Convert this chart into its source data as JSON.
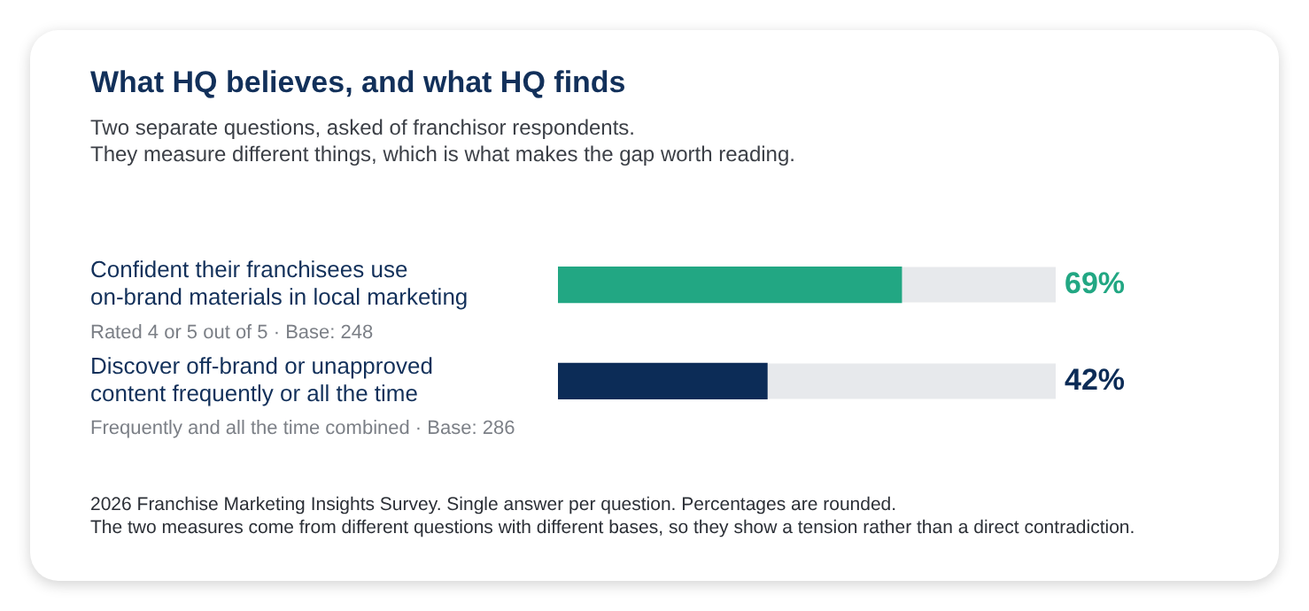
{
  "chart_data": {
    "type": "bar",
    "orientation": "horizontal",
    "title": "What HQ believes, and what HQ finds",
    "subtitle": "Two separate questions, asked of franchisor respondents.\nThey measure different things, which is what makes the gap worth reading.",
    "categories": [
      "Confident their franchisees use on-brand materials in local marketing",
      "Discover off-brand or unapproved content frequently or all the time"
    ],
    "values": [
      69,
      42
    ],
    "colors": [
      "#22a783",
      "#0c2c57"
    ],
    "value_labels": [
      "69%",
      "42%"
    ],
    "xlim": [
      0,
      100
    ],
    "tick_labels": "y",
    "annotations": [
      "Rated 4 or 5 out of 5 · Base: 248",
      "Frequently and all the time combined · Base: 286",
      "2026 Franchise Marketing Insights Survey. Single answer per question. Percentages are rounded.",
      "The two measures come from different questions with different bases, so they show a tension rather than a direct contradiction."
    ]
  }
}
